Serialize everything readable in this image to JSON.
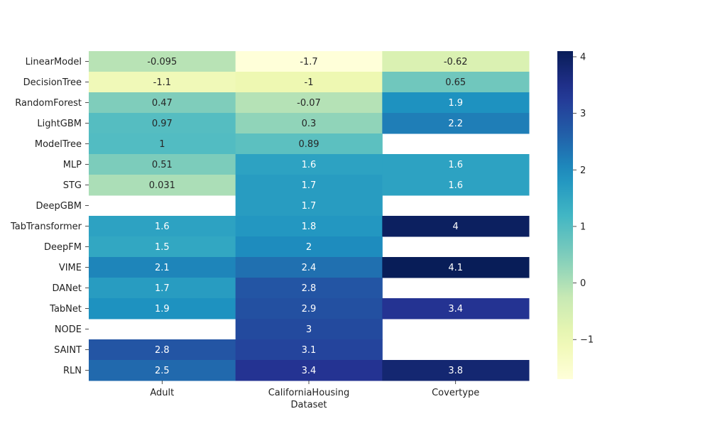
{
  "chart_data": {
    "type": "heatmap",
    "title": "",
    "xlabel": "Dataset",
    "ylabel": "",
    "columns": [
      "Adult",
      "CaliforniaHousing",
      "Covertype"
    ],
    "rows": [
      "LinearModel",
      "DecisionTree",
      "RandomForest",
      "LightGBM",
      "ModelTree",
      "MLP",
      "STG",
      "DeepGBM",
      "TabTransformer",
      "DeepFM",
      "VIME",
      "DANet",
      "TabNet",
      "NODE",
      "SAINT",
      "RLN"
    ],
    "values": [
      [
        -0.095,
        -1.7,
        -0.62
      ],
      [
        -1.1,
        -1,
        0.65
      ],
      [
        0.47,
        -0.07,
        1.9
      ],
      [
        0.97,
        0.3,
        2.2
      ],
      [
        1,
        0.89,
        null
      ],
      [
        0.51,
        1.6,
        1.6
      ],
      [
        0.031,
        1.7,
        1.6
      ],
      [
        null,
        1.7,
        null
      ],
      [
        1.6,
        1.8,
        4
      ],
      [
        1.5,
        2,
        null
      ],
      [
        2.1,
        2.4,
        4.1
      ],
      [
        1.7,
        2.8,
        null
      ],
      [
        1.9,
        2.9,
        3.4
      ],
      [
        null,
        3,
        null
      ],
      [
        2.8,
        3.1,
        null
      ],
      [
        2.5,
        3.4,
        3.8
      ]
    ],
    "colormap": "YlGnBu",
    "vmin": -1.7,
    "vmax": 4.1,
    "colorbar_ticks": [
      -1,
      0,
      1,
      2,
      3,
      4
    ],
    "colorbar_tick_labels": [
      "−1",
      "0",
      "1",
      "2",
      "3",
      "4"
    ]
  }
}
